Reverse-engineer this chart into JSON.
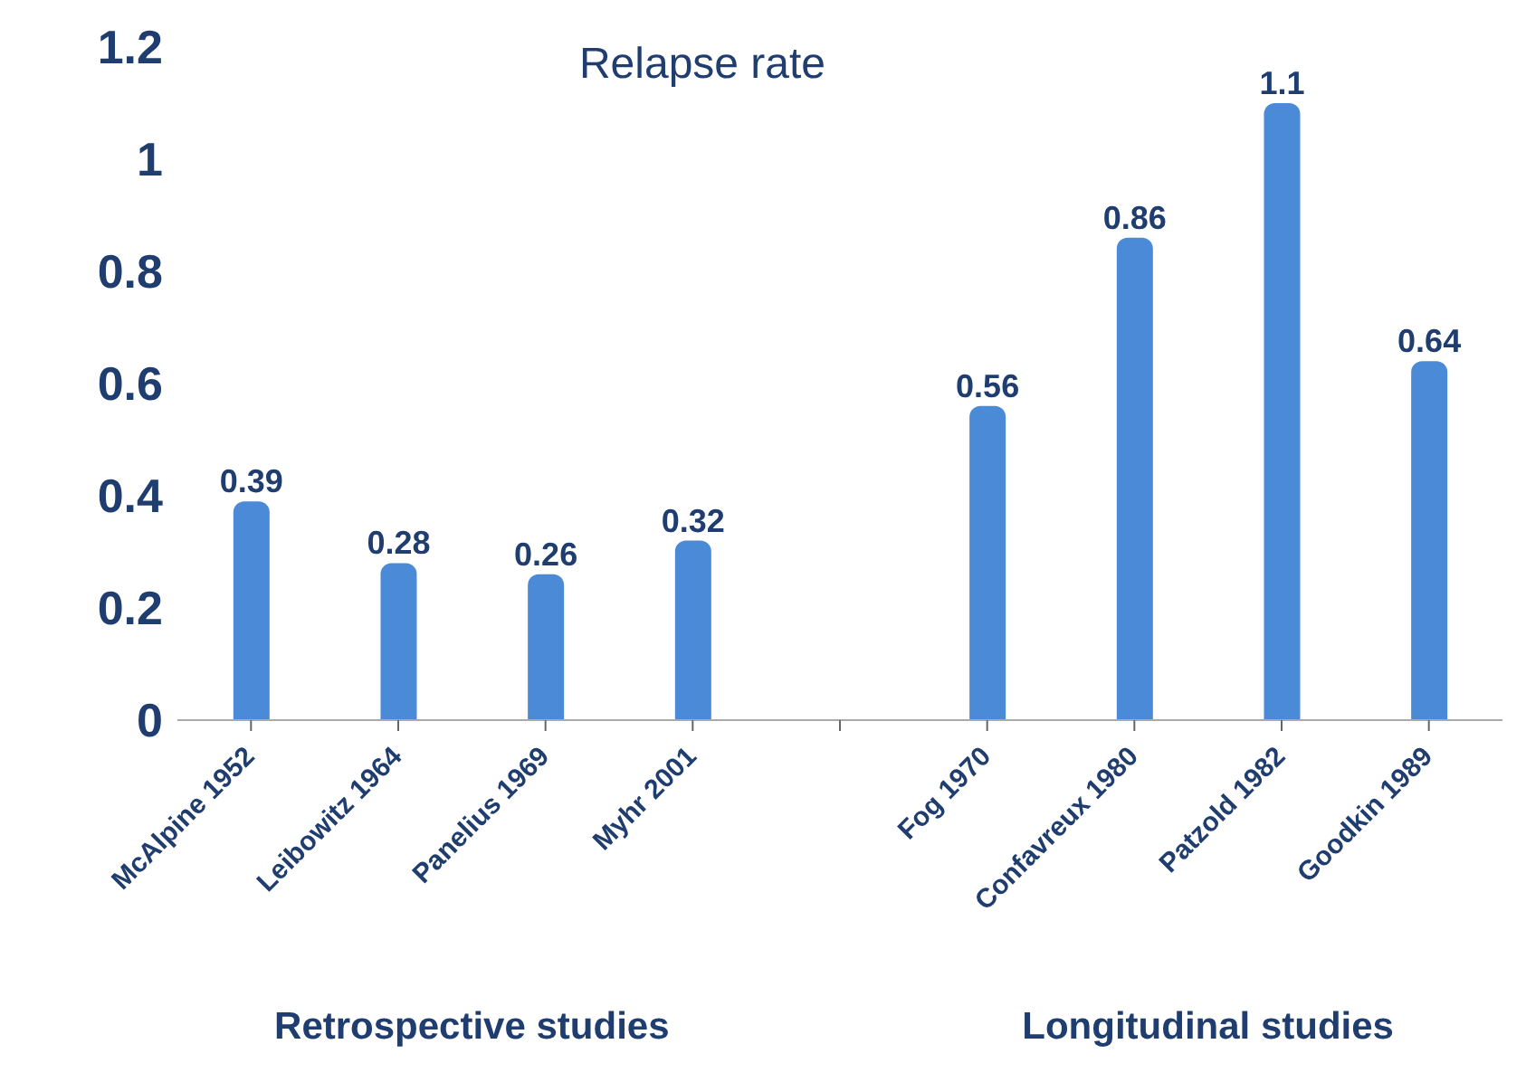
{
  "chart_data": {
    "type": "bar",
    "title": "Relapse rate",
    "categories": [
      "McAlpine 1952",
      "Leibowitz 1964",
      "Panelius 1969",
      "Myhr 2001",
      null,
      "Fog 1970",
      "Confavreux 1980",
      "Patzold 1982",
      "Goodkin 1989"
    ],
    "values": [
      0.39,
      0.28,
      0.26,
      0.32,
      null,
      0.56,
      0.86,
      1.1,
      0.64
    ],
    "color": "#4a8ad6",
    "ylim": [
      0,
      1.2
    ],
    "yticks": [
      0,
      0.2,
      0.4,
      0.6,
      0.8,
      1,
      1.2
    ],
    "grid": false,
    "data_labels": true,
    "annotations": [
      "Retrospective studies",
      "Longitudinal studies"
    ]
  }
}
